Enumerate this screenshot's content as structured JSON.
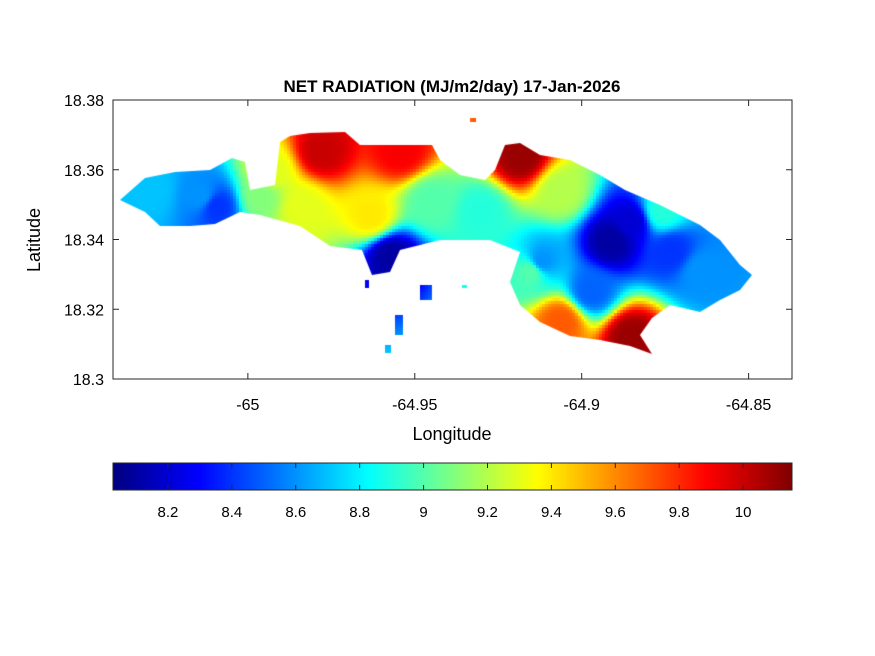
{
  "chart_data": {
    "type": "heatmap",
    "title": "NET RADIATION (MJ/m2/day) 17-Jan-2026",
    "xlabel": "Longitude",
    "ylabel": "Latitude",
    "xlim": [
      -65.0404,
      -64.837
    ],
    "ylim": [
      18.3,
      18.38
    ],
    "xticks": [
      -65,
      -64.95,
      -64.9,
      -64.85
    ],
    "xtick_labels": [
      "-65",
      "-64.95",
      "-64.9",
      "-64.85"
    ],
    "yticks": [
      18.3,
      18.32,
      18.34,
      18.36,
      18.38
    ],
    "ytick_labels": [
      "18.3",
      "18.32",
      "18.34",
      "18.36",
      "18.38"
    ],
    "colormap": "jet",
    "clim": [
      8.028,
      10.153
    ],
    "colorbar_ticks": [
      8.2,
      8.4,
      8.6,
      8.8,
      9,
      9.2,
      9.4,
      9.6,
      9.8,
      10
    ],
    "colorbar_tick_labels": [
      "8.2",
      "8.4",
      "8.6",
      "8.8",
      "9",
      "9.2",
      "9.4",
      "9.6",
      "9.8",
      "10"
    ],
    "colorbar_location": "bottom",
    "samples": [
      {
        "lon": -64.9784,
        "lat": 18.3657,
        "value": 10.0
      },
      {
        "lon": -64.9545,
        "lat": 18.3657,
        "value": 9.9
      },
      {
        "lon": -64.9186,
        "lat": 18.3642,
        "value": 10.1
      },
      {
        "lon": -65.0144,
        "lat": 18.3528,
        "value": 8.6
      },
      {
        "lon": -65.0293,
        "lat": 18.3542,
        "value": 8.7
      },
      {
        "lon": -65.0099,
        "lat": 18.3499,
        "value": 8.4
      },
      {
        "lon": -64.9844,
        "lat": 18.3499,
        "value": 9.3
      },
      {
        "lon": -64.9635,
        "lat": 18.347,
        "value": 9.4
      },
      {
        "lon": -64.9455,
        "lat": 18.3513,
        "value": 9.0
      },
      {
        "lon": -64.9306,
        "lat": 18.3485,
        "value": 8.9
      },
      {
        "lon": -64.9575,
        "lat": 18.3356,
        "value": 8.1
      },
      {
        "lon": -64.9126,
        "lat": 18.3341,
        "value": 8.6
      },
      {
        "lon": -64.8916,
        "lat": 18.3399,
        "value": 8.1
      },
      {
        "lon": -64.8856,
        "lat": 18.3456,
        "value": 8.2
      },
      {
        "lon": -64.8736,
        "lat": 18.337,
        "value": 8.4
      },
      {
        "lon": -64.8647,
        "lat": 18.3313,
        "value": 8.6
      },
      {
        "lon": -64.8976,
        "lat": 18.3255,
        "value": 8.5
      },
      {
        "lon": -64.9066,
        "lat": 18.3169,
        "value": 9.7
      },
      {
        "lon": -64.8856,
        "lat": 18.3126,
        "value": 10.1
      },
      {
        "lon": -64.8766,
        "lat": 18.3485,
        "value": 8.9
      },
      {
        "lon": -64.9066,
        "lat": 18.3542,
        "value": 9.2
      },
      {
        "lon": -64.9964,
        "lat": 18.3528,
        "value": 9.1
      },
      {
        "lon": -64.9934,
        "lat": 18.3599,
        "value": 9.3
      },
      {
        "lon": -64.9156,
        "lat": 18.3313,
        "value": 9.0
      }
    ]
  }
}
